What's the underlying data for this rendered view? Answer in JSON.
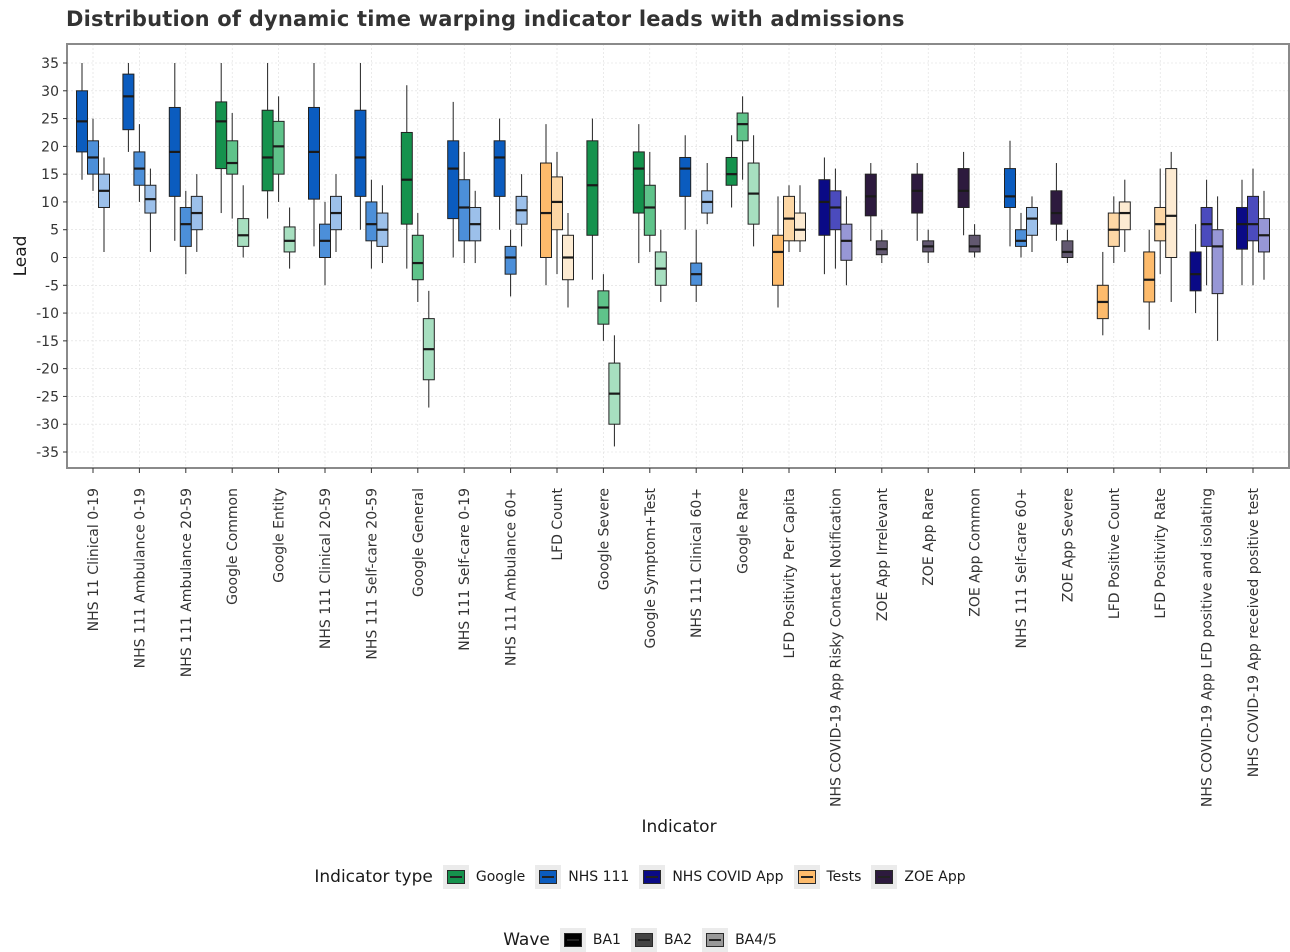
{
  "colors": {
    "Google": [
      "#15924d",
      "#5fc38a",
      "#a7dfc0"
    ],
    "NHS 111": [
      "#0b5cbf",
      "#4c8fd9",
      "#9cc0ea"
    ],
    "NHS COVID App": [
      "#0a0a86",
      "#4b4bbd",
      "#9797d6"
    ],
    "Tests": [
      "#fdbb6c",
      "#fdd7a5",
      "#fdebd2"
    ],
    "ZOE App": [
      "#2d1a3e",
      "#625870",
      "#9a93a2"
    ]
  },
  "legend": {
    "type_title": "Indicator type",
    "type_items": [
      "Google",
      "NHS 111",
      "NHS COVID App",
      "Tests",
      "ZOE App"
    ],
    "wave_title": "Wave",
    "wave_items": [
      "BA1",
      "BA2",
      "BA4/5"
    ],
    "wave_colors": [
      "#000000",
      "#444444",
      "#999999"
    ]
  },
  "chart_data": {
    "type": "box",
    "title": "Distribution of dynamic time warping indicator leads with admissions",
    "xlabel": "Indicator",
    "ylabel": "Lead",
    "ylim": [
      -38,
      38
    ],
    "yticks": [
      35,
      30,
      25,
      20,
      15,
      10,
      5,
      0,
      -5,
      -10,
      -15,
      -20,
      -25,
      -30,
      -35
    ],
    "waves": [
      "BA1",
      "BA2",
      "BA4/5"
    ],
    "categories": [
      {
        "name": "NHS 11 Clinical 0-19",
        "type": "NHS 111",
        "boxes": [
          [
            14,
            19,
            24.5,
            30,
            35
          ],
          [
            12,
            15,
            18,
            21,
            25
          ],
          [
            1,
            9,
            12,
            15,
            18
          ]
        ]
      },
      {
        "name": "NHS 111 Ambulance 0-19",
        "type": "NHS 111",
        "boxes": [
          [
            19,
            23,
            29,
            33,
            35
          ],
          [
            10,
            13,
            16,
            19,
            24
          ],
          [
            1,
            8,
            10.5,
            13,
            16
          ]
        ]
      },
      {
        "name": "NHS 111 Ambulance 20-59",
        "type": "NHS 111",
        "boxes": [
          [
            3,
            11,
            19,
            27,
            35
          ],
          [
            -3,
            2,
            6,
            9,
            12
          ],
          [
            1,
            5,
            8,
            11,
            15
          ]
        ]
      },
      {
        "name": "Google Common",
        "type": "Google",
        "boxes": [
          [
            8,
            16,
            24.5,
            28,
            35
          ],
          [
            7,
            15,
            17,
            21,
            26
          ],
          [
            0,
            2,
            4,
            7,
            13
          ]
        ]
      },
      {
        "name": "Google Entity",
        "type": "Google",
        "boxes": [
          [
            7,
            12,
            18,
            26.5,
            35
          ],
          [
            10,
            15,
            20,
            24.5,
            29
          ],
          [
            -2,
            1,
            3,
            5.5,
            9
          ]
        ]
      },
      {
        "name": "NHS 111 Clinical 20-59",
        "type": "NHS 111",
        "boxes": [
          [
            2,
            10.5,
            19,
            27,
            35
          ],
          [
            -5,
            0,
            3,
            6,
            10
          ],
          [
            1,
            5,
            8,
            11,
            15
          ]
        ]
      },
      {
        "name": "NHS 111 Self-care 20-59",
        "type": "NHS 111",
        "boxes": [
          [
            5,
            11,
            18,
            26.5,
            35
          ],
          [
            -2,
            3,
            6,
            10,
            14
          ],
          [
            -1,
            2,
            5,
            8,
            13
          ]
        ]
      },
      {
        "name": "Google General",
        "type": "Google",
        "boxes": [
          [
            -2,
            6,
            14,
            22.5,
            31
          ],
          [
            -8,
            -4,
            -1,
            4,
            8
          ],
          [
            -27,
            -22,
            -16.5,
            -11,
            -6
          ]
        ]
      },
      {
        "name": "NHS 111 Self-care 0-19",
        "type": "NHS 111",
        "boxes": [
          [
            0,
            7,
            16,
            21,
            28
          ],
          [
            -1,
            3,
            9,
            14,
            19
          ],
          [
            -1,
            3,
            6,
            9,
            12
          ]
        ]
      },
      {
        "name": "NHS 111 Ambulance 60+",
        "type": "NHS 111",
        "boxes": [
          [
            5,
            11,
            18,
            21,
            25
          ],
          [
            -7,
            -3,
            0,
            2,
            5
          ],
          [
            2,
            6,
            8.5,
            11,
            15
          ]
        ]
      },
      {
        "name": "LFD Count",
        "type": "Tests",
        "boxes": [
          [
            -5,
            0,
            8,
            17,
            24
          ],
          [
            -3,
            5,
            10,
            14.5,
            19
          ],
          [
            -9,
            -4,
            0,
            4,
            8
          ]
        ]
      },
      {
        "name": "Google Severe",
        "type": "Google",
        "boxes": [
          [
            -4,
            4,
            13,
            21,
            25
          ],
          [
            -15,
            -12,
            -9,
            -6,
            -3
          ],
          [
            -34,
            -30,
            -24.5,
            -19,
            -14
          ]
        ]
      },
      {
        "name": "Google Symptom+Test",
        "type": "Google",
        "boxes": [
          [
            -1,
            8,
            16,
            19,
            24
          ],
          [
            1,
            4,
            9,
            13,
            19
          ],
          [
            -8,
            -5,
            -2,
            1,
            5
          ]
        ]
      },
      {
        "name": "NHS 111 Clinical 60+",
        "type": "NHS 111",
        "boxes": [
          [
            5,
            11,
            16,
            18,
            22
          ],
          [
            -8,
            -5,
            -3,
            -1,
            5
          ],
          [
            6,
            8,
            10,
            12,
            17
          ]
        ]
      },
      {
        "name": "Google Rare",
        "type": "Google",
        "boxes": [
          [
            9,
            13,
            15,
            18,
            22
          ],
          [
            14,
            21,
            24,
            26,
            29
          ],
          [
            2,
            6,
            11.5,
            17,
            22
          ]
        ]
      },
      {
        "name": "LFD Positivity Per Capita",
        "type": "Tests",
        "boxes": [
          [
            -9,
            -5,
            1,
            4,
            11
          ],
          [
            1,
            3,
            7,
            11,
            13
          ],
          [
            1,
            3,
            5,
            8,
            13
          ]
        ]
      },
      {
        "name": "NHS COVID-19 App Risky Contact Notification",
        "type": "NHS COVID App",
        "boxes": [
          [
            -3,
            4,
            10,
            14,
            18
          ],
          [
            -2,
            5,
            9,
            12,
            16
          ],
          [
            -5,
            -0.5,
            3,
            6,
            11
          ]
        ]
      },
      {
        "name": "ZOE App Irrelevant",
        "type": "ZOE App",
        "boxes": [
          [
            3,
            7.5,
            11,
            15,
            17
          ],
          [
            -1,
            0.5,
            1.5,
            3,
            5
          ],
          null
        ]
      },
      {
        "name": "ZOE App Rare",
        "type": "ZOE App",
        "boxes": [
          [
            3,
            8,
            12,
            15,
            17
          ],
          [
            -1,
            1,
            2,
            3,
            5
          ],
          null
        ]
      },
      {
        "name": "ZOE App Common",
        "type": "ZOE App",
        "boxes": [
          [
            4,
            9,
            12,
            16,
            19
          ],
          [
            0,
            1,
            2,
            4,
            6
          ],
          null
        ]
      },
      {
        "name": "NHS 111 Self-care 60+",
        "type": "NHS 111",
        "boxes": [
          [
            2,
            9,
            11,
            16,
            21
          ],
          [
            0,
            2,
            3,
            5,
            8
          ],
          [
            1,
            4,
            7,
            9,
            11
          ]
        ]
      },
      {
        "name": "ZOE App Severe",
        "type": "ZOE App",
        "boxes": [
          [
            3,
            6,
            8,
            12,
            17
          ],
          [
            -1,
            0,
            1,
            3,
            5
          ],
          null
        ]
      },
      {
        "name": "LFD Positive Count",
        "type": "Tests",
        "boxes": [
          [
            -14,
            -11,
            -8,
            -5,
            1
          ],
          [
            -1,
            2,
            5,
            8,
            11
          ],
          [
            1,
            5,
            8,
            10,
            14
          ]
        ]
      },
      {
        "name": "LFD Positivity Rate",
        "type": "Tests",
        "boxes": [
          [
            -13,
            -8,
            -4,
            1,
            5
          ],
          [
            -3,
            3,
            6,
            9,
            16
          ],
          [
            -8,
            0,
            7.5,
            16,
            19
          ]
        ]
      },
      {
        "name": "NHS COVID-19 App LFD positive and isolating",
        "type": "NHS COVID App",
        "boxes": [
          [
            -10,
            -6,
            -3,
            1,
            6
          ],
          [
            -5,
            2,
            6,
            9,
            14
          ],
          [
            -15,
            -6.5,
            2,
            5,
            11
          ]
        ]
      },
      {
        "name": "NHS COVID-19 App received positive test",
        "type": "NHS COVID App",
        "boxes": [
          [
            -5,
            1.5,
            6,
            9,
            14
          ],
          [
            -5,
            3,
            6,
            11,
            16
          ],
          [
            -4,
            1,
            4,
            7,
            12
          ]
        ]
      }
    ]
  }
}
